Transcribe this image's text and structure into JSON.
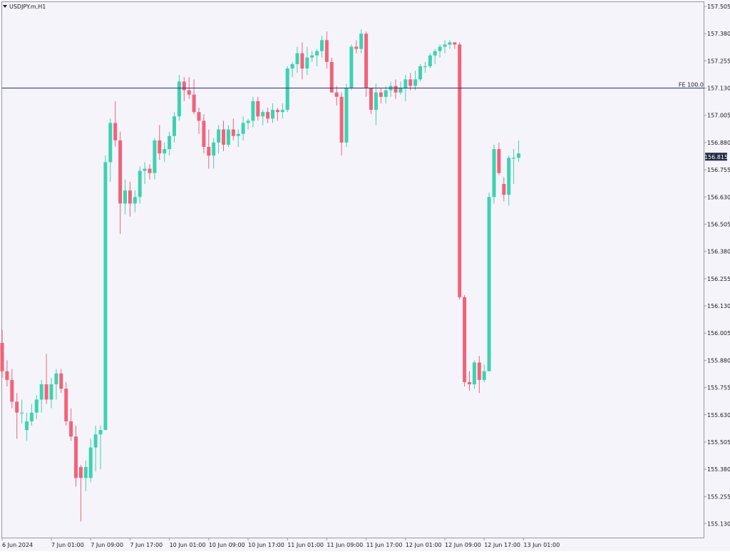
{
  "symbol_label": "USDJPY.m,H1",
  "fe_label": "FE 100.0",
  "colors": {
    "background": "#f5f4fa",
    "frame": "#9a9a9a",
    "up": "#3dd2b0",
    "down": "#f0637a",
    "line": "#2b2b8c",
    "text": "#1a1a1a",
    "price_box": "#1f2a44"
  },
  "chart_data": {
    "type": "candlestick",
    "symbol": "USDJPY.m",
    "timeframe": "H1",
    "ylim": [
      155.1,
      157.52
    ],
    "y_ticks": [
      "157.505",
      "157.380",
      "157.255",
      "157.130",
      "157.005",
      "156.880",
      "156.755",
      "156.630",
      "156.505",
      "156.380",
      "156.255",
      "156.130",
      "156.005",
      "155.880",
      "155.755",
      "155.630",
      "155.505",
      "155.380",
      "155.255",
      "155.130"
    ],
    "x_ticks": [
      {
        "label": "6 Jun 2024",
        "index": 0
      },
      {
        "label": "7 Jun 01:00",
        "index": 10
      },
      {
        "label": "7 Jun 09:00",
        "index": 18
      },
      {
        "label": "7 Jun 17:00",
        "index": 26
      },
      {
        "label": "10 Jun 01:00",
        "index": 34
      },
      {
        "label": "10 Jun 09:00",
        "index": 42
      },
      {
        "label": "10 Jun 17:00",
        "index": 50
      },
      {
        "label": "11 Jun 01:00",
        "index": 58
      },
      {
        "label": "11 Jun 09:00",
        "index": 66
      },
      {
        "label": "11 Jun 17:00",
        "index": 74
      },
      {
        "label": "12 Jun 01:00",
        "index": 82
      },
      {
        "label": "12 Jun 09:00",
        "index": 90
      },
      {
        "label": "12 Jun 17:00",
        "index": 98
      },
      {
        "label": "13 Jun 01:00",
        "index": 106
      }
    ],
    "current_price": "156.815",
    "fe_level": 157.13,
    "candles": [
      {
        "o": 155.96,
        "h": 156.02,
        "l": 155.8,
        "c": 155.83
      },
      {
        "o": 155.83,
        "h": 155.88,
        "l": 155.76,
        "c": 155.79
      },
      {
        "o": 155.79,
        "h": 155.84,
        "l": 155.66,
        "c": 155.69
      },
      {
        "o": 155.69,
        "h": 155.73,
        "l": 155.52,
        "c": 155.64
      },
      {
        "o": 155.64,
        "h": 155.7,
        "l": 155.59,
        "c": 155.64
      },
      {
        "o": 155.56,
        "h": 155.64,
        "l": 155.51,
        "c": 155.6
      },
      {
        "o": 155.6,
        "h": 155.68,
        "l": 155.58,
        "c": 155.64
      },
      {
        "o": 155.64,
        "h": 155.72,
        "l": 155.61,
        "c": 155.7
      },
      {
        "o": 155.7,
        "h": 155.79,
        "l": 155.64,
        "c": 155.77
      },
      {
        "o": 155.77,
        "h": 155.91,
        "l": 155.68,
        "c": 155.7
      },
      {
        "o": 155.7,
        "h": 155.8,
        "l": 155.66,
        "c": 155.77
      },
      {
        "o": 155.77,
        "h": 155.84,
        "l": 155.7,
        "c": 155.82
      },
      {
        "o": 155.82,
        "h": 155.84,
        "l": 155.73,
        "c": 155.75
      },
      {
        "o": 155.75,
        "h": 155.78,
        "l": 155.58,
        "c": 155.6
      },
      {
        "o": 155.6,
        "h": 155.66,
        "l": 155.51,
        "c": 155.53
      },
      {
        "o": 155.53,
        "h": 155.58,
        "l": 155.3,
        "c": 155.34
      },
      {
        "o": 155.39,
        "h": 155.4,
        "l": 155.14,
        "c": 155.34
      },
      {
        "o": 155.34,
        "h": 155.42,
        "l": 155.28,
        "c": 155.39
      },
      {
        "o": 155.34,
        "h": 155.52,
        "l": 155.32,
        "c": 155.48
      },
      {
        "o": 155.48,
        "h": 155.58,
        "l": 155.37,
        "c": 155.54
      },
      {
        "o": 155.54,
        "h": 155.58,
        "l": 155.38,
        "c": 155.56
      },
      {
        "o": 155.56,
        "h": 156.82,
        "l": 155.56,
        "c": 156.79
      },
      {
        "o": 156.79,
        "h": 156.99,
        "l": 156.7,
        "c": 156.97
      },
      {
        "o": 156.97,
        "h": 157.07,
        "l": 156.86,
        "c": 156.89
      },
      {
        "o": 156.89,
        "h": 156.93,
        "l": 156.46,
        "c": 156.6
      },
      {
        "o": 156.6,
        "h": 156.71,
        "l": 156.55,
        "c": 156.66
      },
      {
        "o": 156.66,
        "h": 156.7,
        "l": 156.54,
        "c": 156.6
      },
      {
        "o": 156.6,
        "h": 156.66,
        "l": 156.56,
        "c": 156.63
      },
      {
        "o": 156.63,
        "h": 156.77,
        "l": 156.6,
        "c": 156.75
      },
      {
        "o": 156.75,
        "h": 156.79,
        "l": 156.69,
        "c": 156.76
      },
      {
        "o": 156.76,
        "h": 156.78,
        "l": 156.71,
        "c": 156.74
      },
      {
        "o": 156.74,
        "h": 156.9,
        "l": 156.71,
        "c": 156.89
      },
      {
        "o": 156.89,
        "h": 156.96,
        "l": 156.8,
        "c": 156.83
      },
      {
        "o": 156.83,
        "h": 156.88,
        "l": 156.79,
        "c": 156.85
      },
      {
        "o": 156.85,
        "h": 156.93,
        "l": 156.82,
        "c": 156.91
      },
      {
        "o": 156.91,
        "h": 157.02,
        "l": 156.88,
        "c": 157.0
      },
      {
        "o": 157.0,
        "h": 157.19,
        "l": 156.98,
        "c": 157.16
      },
      {
        "o": 157.16,
        "h": 157.18,
        "l": 157.07,
        "c": 157.12
      },
      {
        "o": 157.12,
        "h": 157.18,
        "l": 157.08,
        "c": 157.1
      },
      {
        "o": 157.1,
        "h": 157.17,
        "l": 157.01,
        "c": 157.02
      },
      {
        "o": 157.02,
        "h": 157.04,
        "l": 156.92,
        "c": 156.98
      },
      {
        "o": 156.98,
        "h": 157.01,
        "l": 156.83,
        "c": 156.86
      },
      {
        "o": 156.86,
        "h": 156.94,
        "l": 156.76,
        "c": 156.82
      },
      {
        "o": 156.82,
        "h": 156.9,
        "l": 156.76,
        "c": 156.88
      },
      {
        "o": 156.88,
        "h": 156.96,
        "l": 156.83,
        "c": 156.94
      },
      {
        "o": 156.94,
        "h": 156.98,
        "l": 156.84,
        "c": 156.87
      },
      {
        "o": 156.87,
        "h": 156.96,
        "l": 156.86,
        "c": 156.94
      },
      {
        "o": 156.94,
        "h": 156.99,
        "l": 156.89,
        "c": 156.91
      },
      {
        "o": 156.91,
        "h": 156.94,
        "l": 156.86,
        "c": 156.92
      },
      {
        "o": 156.92,
        "h": 157.0,
        "l": 156.89,
        "c": 156.97
      },
      {
        "o": 156.97,
        "h": 156.99,
        "l": 156.94,
        "c": 156.98
      },
      {
        "o": 156.98,
        "h": 157.09,
        "l": 156.95,
        "c": 157.07
      },
      {
        "o": 157.07,
        "h": 157.09,
        "l": 156.98,
        "c": 157.0
      },
      {
        "o": 157.0,
        "h": 157.03,
        "l": 156.96,
        "c": 157.02
      },
      {
        "o": 157.02,
        "h": 157.04,
        "l": 156.97,
        "c": 156.99
      },
      {
        "o": 156.99,
        "h": 157.06,
        "l": 156.97,
        "c": 157.03
      },
      {
        "o": 157.03,
        "h": 157.04,
        "l": 156.98,
        "c": 157.02
      },
      {
        "o": 157.02,
        "h": 157.06,
        "l": 156.99,
        "c": 157.03
      },
      {
        "o": 157.03,
        "h": 157.23,
        "l": 157.02,
        "c": 157.22
      },
      {
        "o": 157.22,
        "h": 157.25,
        "l": 157.18,
        "c": 157.24
      },
      {
        "o": 157.24,
        "h": 157.32,
        "l": 157.2,
        "c": 157.29
      },
      {
        "o": 157.29,
        "h": 157.34,
        "l": 157.17,
        "c": 157.22
      },
      {
        "o": 157.22,
        "h": 157.32,
        "l": 157.19,
        "c": 157.27
      },
      {
        "o": 157.27,
        "h": 157.3,
        "l": 157.25,
        "c": 157.28
      },
      {
        "o": 157.28,
        "h": 157.31,
        "l": 157.23,
        "c": 157.3
      },
      {
        "o": 157.3,
        "h": 157.37,
        "l": 157.27,
        "c": 157.35
      },
      {
        "o": 157.35,
        "h": 157.39,
        "l": 157.22,
        "c": 157.25
      },
      {
        "o": 157.25,
        "h": 157.27,
        "l": 157.11,
        "c": 157.11
      },
      {
        "o": 157.11,
        "h": 157.14,
        "l": 157.05,
        "c": 157.09
      },
      {
        "o": 157.09,
        "h": 157.11,
        "l": 156.82,
        "c": 156.88
      },
      {
        "o": 156.88,
        "h": 157.15,
        "l": 156.86,
        "c": 157.13
      },
      {
        "o": 157.13,
        "h": 157.33,
        "l": 157.12,
        "c": 157.32
      },
      {
        "o": 157.32,
        "h": 157.35,
        "l": 157.29,
        "c": 157.31
      },
      {
        "o": 157.31,
        "h": 157.4,
        "l": 157.29,
        "c": 157.38
      },
      {
        "o": 157.38,
        "h": 157.39,
        "l": 157.09,
        "c": 157.13
      },
      {
        "o": 157.13,
        "h": 157.13,
        "l": 157.01,
        "c": 157.03
      },
      {
        "o": 157.03,
        "h": 157.15,
        "l": 156.96,
        "c": 157.11
      },
      {
        "o": 157.11,
        "h": 157.13,
        "l": 157.06,
        "c": 157.09
      },
      {
        "o": 157.09,
        "h": 157.14,
        "l": 157.06,
        "c": 157.12
      },
      {
        "o": 157.12,
        "h": 157.16,
        "l": 157.09,
        "c": 157.14
      },
      {
        "o": 157.14,
        "h": 157.17,
        "l": 157.08,
        "c": 157.11
      },
      {
        "o": 157.11,
        "h": 157.16,
        "l": 157.1,
        "c": 157.13
      },
      {
        "o": 157.13,
        "h": 157.19,
        "l": 157.07,
        "c": 157.17
      },
      {
        "o": 157.17,
        "h": 157.2,
        "l": 157.12,
        "c": 157.14
      },
      {
        "o": 157.14,
        "h": 157.21,
        "l": 157.12,
        "c": 157.17
      },
      {
        "o": 157.17,
        "h": 157.24,
        "l": 157.16,
        "c": 157.23
      },
      {
        "o": 157.23,
        "h": 157.25,
        "l": 157.2,
        "c": 157.23
      },
      {
        "o": 157.23,
        "h": 157.29,
        "l": 157.22,
        "c": 157.28
      },
      {
        "o": 157.28,
        "h": 157.31,
        "l": 157.24,
        "c": 157.3
      },
      {
        "o": 157.3,
        "h": 157.33,
        "l": 157.27,
        "c": 157.32
      },
      {
        "o": 157.32,
        "h": 157.35,
        "l": 157.29,
        "c": 157.33
      },
      {
        "o": 157.33,
        "h": 157.35,
        "l": 157.31,
        "c": 157.34
      },
      {
        "o": 157.34,
        "h": 157.34,
        "l": 157.31,
        "c": 157.33
      },
      {
        "o": 157.33,
        "h": 157.34,
        "l": 156.16,
        "c": 156.17
      },
      {
        "o": 156.17,
        "h": 156.18,
        "l": 155.76,
        "c": 155.78
      },
      {
        "o": 155.78,
        "h": 155.83,
        "l": 155.74,
        "c": 155.77
      },
      {
        "o": 155.77,
        "h": 155.88,
        "l": 155.75,
        "c": 155.87
      },
      {
        "o": 155.87,
        "h": 155.9,
        "l": 155.73,
        "c": 155.79
      },
      {
        "o": 155.79,
        "h": 155.86,
        "l": 155.78,
        "c": 155.83
      },
      {
        "o": 155.83,
        "h": 156.65,
        "l": 155.83,
        "c": 156.63
      },
      {
        "o": 156.63,
        "h": 156.87,
        "l": 156.6,
        "c": 156.85
      },
      {
        "o": 156.85,
        "h": 156.88,
        "l": 156.73,
        "c": 156.74
      },
      {
        "o": 156.69,
        "h": 156.72,
        "l": 156.61,
        "c": 156.64
      },
      {
        "o": 156.64,
        "h": 156.82,
        "l": 156.59,
        "c": 156.81
      },
      {
        "o": 156.81,
        "h": 156.85,
        "l": 156.69,
        "c": 156.81
      },
      {
        "o": 156.81,
        "h": 156.89,
        "l": 156.79,
        "c": 156.83
      }
    ]
  }
}
